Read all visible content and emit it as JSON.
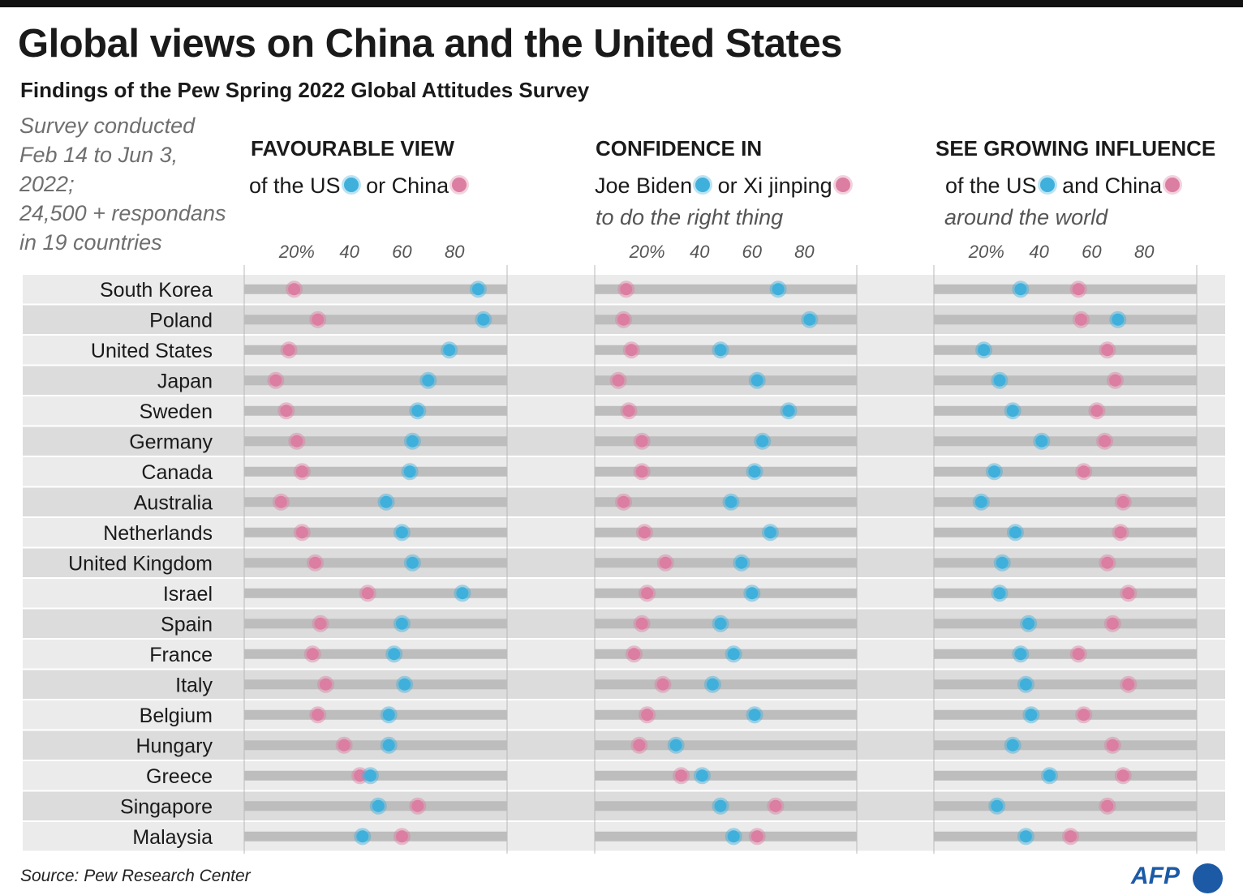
{
  "title": "Global views on China and the United States",
  "subtitle": "Findings of the Pew Spring 2022 Global Attitudes Survey",
  "note": [
    "Survey conducted",
    "Feb 14 to Jun 3,",
    "2022;",
    "24,500 + respondans",
    "in 19 countries"
  ],
  "source": "Source: Pew Research Center",
  "logo_text": "AFP",
  "colors": {
    "us": "#3fb0dc",
    "china": "#db7ea1",
    "track": "#bdbdbd",
    "row_light": "#ebebeb",
    "row_dark": "#dcdcdc"
  },
  "panels": [
    {
      "heading": "FAVOURABLE VIEW",
      "legend_a": "of the US",
      "legend_b": "or China",
      "legend_extra": ""
    },
    {
      "heading": "CONFIDENCE IN",
      "legend_a": "Joe Biden",
      "legend_b": "or Xi jinping",
      "legend_extra": "to do the right thing"
    },
    {
      "heading": "SEE GROWING INFLUENCE",
      "legend_a": "of the US",
      "legend_b": "and China",
      "legend_extra": "around the world"
    }
  ],
  "chart_data": [
    {
      "type": "scatter",
      "title": "FAVOURABLE VIEW",
      "x_ticks": [
        "20%",
        "40",
        "60",
        "80"
      ],
      "xlim": [
        0,
        100
      ],
      "categories": [
        "South Korea",
        "Poland",
        "United States",
        "Japan",
        "Sweden",
        "Germany",
        "Canada",
        "Australia",
        "Netherlands",
        "United Kingdom",
        "Israel",
        "Spain",
        "France",
        "Italy",
        "Belgium",
        "Hungary",
        "Greece",
        "Singapore",
        "Malaysia"
      ],
      "series": [
        {
          "name": "of the US",
          "values": [
            89,
            91,
            78,
            70,
            66,
            64,
            63,
            54,
            60,
            64,
            83,
            60,
            57,
            61,
            55,
            55,
            48,
            51,
            45
          ]
        },
        {
          "name": "or China",
          "values": [
            19,
            28,
            17,
            12,
            16,
            20,
            22,
            14,
            22,
            27,
            47,
            29,
            26,
            31,
            28,
            38,
            44,
            66,
            60
          ]
        }
      ]
    },
    {
      "type": "scatter",
      "title": "CONFIDENCE IN",
      "x_ticks": [
        "20%",
        "40",
        "60",
        "80"
      ],
      "xlim": [
        0,
        100
      ],
      "categories": [
        "South Korea",
        "Poland",
        "United States",
        "Japan",
        "Sweden",
        "Germany",
        "Canada",
        "Australia",
        "Netherlands",
        "United Kingdom",
        "Israel",
        "Spain",
        "France",
        "Italy",
        "Belgium",
        "Hungary",
        "Greece",
        "Singapore",
        "Malaysia"
      ],
      "series": [
        {
          "name": "Joe Biden",
          "values": [
            70,
            82,
            48,
            62,
            74,
            64,
            61,
            52,
            67,
            56,
            60,
            48,
            53,
            45,
            61,
            31,
            41,
            48,
            53
          ]
        },
        {
          "name": "or Xi jinping",
          "values": [
            12,
            11,
            14,
            9,
            13,
            18,
            18,
            11,
            19,
            27,
            20,
            18,
            15,
            26,
            20,
            17,
            33,
            69,
            62
          ]
        }
      ]
    },
    {
      "type": "scatter",
      "title": "SEE GROWING INFLUENCE",
      "x_ticks": [
        "20%",
        "40",
        "60",
        "80"
      ],
      "xlim": [
        0,
        100
      ],
      "categories": [
        "South Korea",
        "Poland",
        "United States",
        "Japan",
        "Sweden",
        "Germany",
        "Canada",
        "Australia",
        "Netherlands",
        "United Kingdom",
        "Israel",
        "Spain",
        "France",
        "Italy",
        "Belgium",
        "Hungary",
        "Greece",
        "Singapore",
        "Malaysia"
      ],
      "series": [
        {
          "name": "of the US",
          "values": [
            33,
            70,
            19,
            25,
            30,
            41,
            23,
            18,
            31,
            26,
            25,
            36,
            33,
            35,
            37,
            30,
            44,
            24,
            35
          ]
        },
        {
          "name": "and China",
          "values": [
            55,
            56,
            66,
            69,
            62,
            65,
            57,
            72,
            71,
            66,
            74,
            68,
            55,
            74,
            57,
            68,
            72,
            66,
            52
          ]
        }
      ]
    }
  ]
}
